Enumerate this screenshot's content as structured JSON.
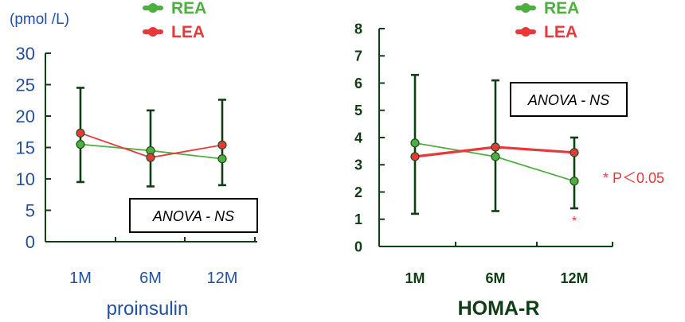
{
  "colors": {
    "rea": "#4caf3f",
    "lea": "#e8393a",
    "left_text": "#2350a0",
    "right_text": "#0f3d14",
    "axis": "#0f3d14",
    "errorbar": "#0f3d14",
    "annotation": "#e8393a"
  },
  "legend_entries": [
    "REA",
    "LEA"
  ],
  "chart_data": [
    {
      "type": "line",
      "title": "",
      "xlabel": "proinsulin",
      "ylabel": "(pmol /L)",
      "categories": [
        "1M",
        "6M",
        "12M"
      ],
      "ylim": [
        0,
        30
      ],
      "yticks": [
        0,
        5,
        10,
        15,
        20,
        25,
        30
      ],
      "legend": "top",
      "series": [
        {
          "name": "REA",
          "values": [
            15.5,
            14.5,
            13.2
          ],
          "error_bars": [
            [
              9.5,
              24.5
            ],
            [
              8.8,
              20.9
            ],
            [
              9.0,
              22.6
            ]
          ]
        },
        {
          "name": "LEA",
          "values": [
            17.3,
            13.4,
            15.4
          ]
        }
      ],
      "annotations": [
        "ANOVA - NS"
      ]
    },
    {
      "type": "line",
      "title": "",
      "xlabel": "HOMA-R",
      "ylabel": "",
      "categories": [
        "1M",
        "6M",
        "12M"
      ],
      "ylim": [
        0,
        8
      ],
      "yticks": [
        0,
        1,
        2,
        3,
        4,
        5,
        6,
        7,
        8
      ],
      "legend": "top",
      "series": [
        {
          "name": "REA",
          "values": [
            3.8,
            3.3,
            2.4
          ],
          "error_bars": [
            [
              1.2,
              6.3
            ],
            [
              1.3,
              6.1
            ],
            [
              1.4,
              4.0
            ]
          ]
        },
        {
          "name": "LEA",
          "values": [
            3.3,
            3.65,
            3.45
          ]
        }
      ],
      "annotations": [
        "ANOVA - NS",
        "* P＜0.05",
        "*"
      ]
    }
  ]
}
